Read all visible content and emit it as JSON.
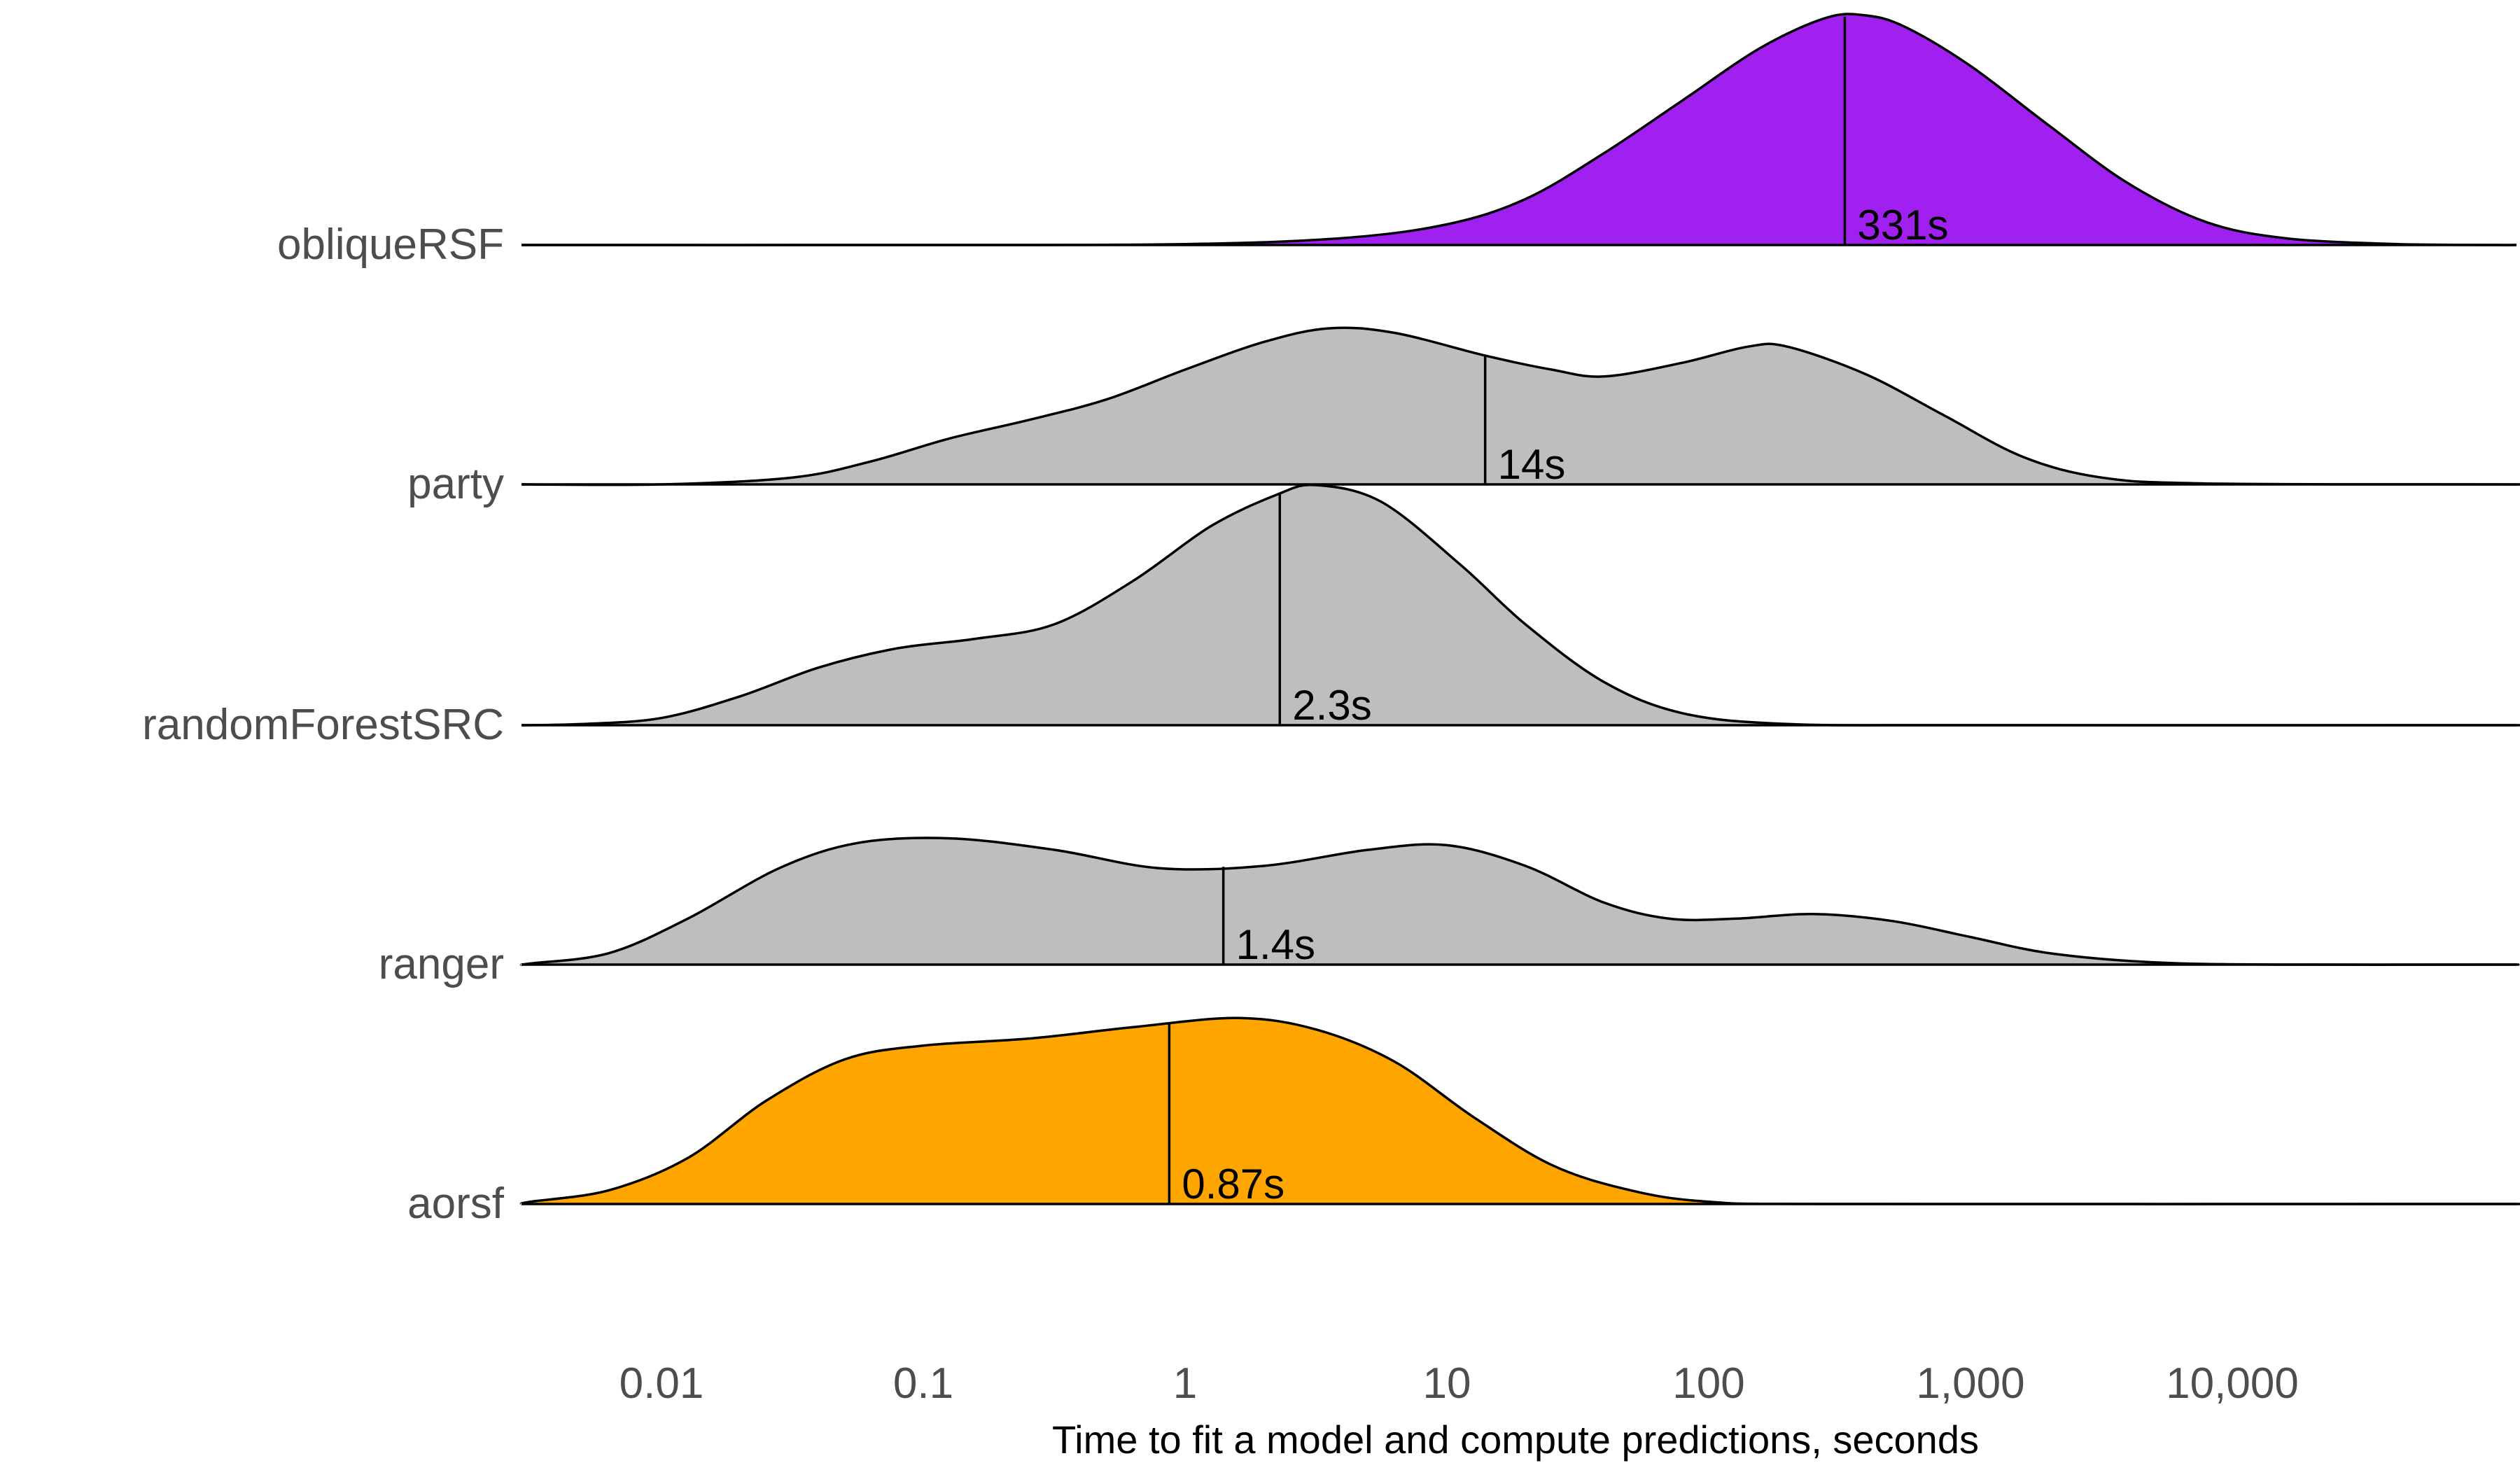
{
  "chart_data": {
    "type": "ridgeline",
    "title": "",
    "xlabel": "Time to fit a model and compute predictions, seconds",
    "ylabel": "",
    "x_scale": "log10",
    "xlim": [
      0.001,
      100000
    ],
    "x_ticks": [
      {
        "value": 0.01,
        "label": "0.01"
      },
      {
        "value": 0.1,
        "label": "0.1"
      },
      {
        "value": 1,
        "label": "1"
      },
      {
        "value": 10,
        "label": "10"
      },
      {
        "value": 100,
        "label": "100"
      },
      {
        "value": 1000,
        "label": "1,000"
      },
      {
        "value": 10000,
        "label": "10,000"
      }
    ],
    "grid": false,
    "legend": "none",
    "series": [
      {
        "name": "obliqueRSF",
        "color": "#a020f0",
        "median": 331,
        "median_label": "331s",
        "density": [
          {
            "log10x": -3.0,
            "h": 0.0
          },
          {
            "log10x": -1.0,
            "h": 0.0
          },
          {
            "log10x": 0.0,
            "h": 0.004
          },
          {
            "log10x": 0.6,
            "h": 0.03
          },
          {
            "log10x": 1.0,
            "h": 0.09
          },
          {
            "log10x": 1.3,
            "h": 0.2
          },
          {
            "log10x": 1.6,
            "h": 0.4
          },
          {
            "log10x": 1.9,
            "h": 0.63
          },
          {
            "log10x": 2.2,
            "h": 0.86
          },
          {
            "log10x": 2.45,
            "h": 0.99
          },
          {
            "log10x": 2.6,
            "h": 1.0
          },
          {
            "log10x": 2.75,
            "h": 0.95
          },
          {
            "log10x": 3.0,
            "h": 0.78
          },
          {
            "log10x": 3.3,
            "h": 0.52
          },
          {
            "log10x": 3.6,
            "h": 0.27
          },
          {
            "log10x": 3.9,
            "h": 0.1
          },
          {
            "log10x": 4.2,
            "h": 0.03
          },
          {
            "log10x": 4.6,
            "h": 0.005
          },
          {
            "log10x": 5.0,
            "h": 0.0
          }
        ]
      },
      {
        "name": "party",
        "color": "#bebebe",
        "median": 14,
        "median_label": "14s",
        "density": [
          {
            "log10x": -3.0,
            "h": 0.0
          },
          {
            "log10x": -2.0,
            "h": 0.0
          },
          {
            "log10x": -1.5,
            "h": 0.03
          },
          {
            "log10x": -1.2,
            "h": 0.1
          },
          {
            "log10x": -0.9,
            "h": 0.2
          },
          {
            "log10x": -0.6,
            "h": 0.28
          },
          {
            "log10x": -0.3,
            "h": 0.37
          },
          {
            "log10x": 0.0,
            "h": 0.5
          },
          {
            "log10x": 0.3,
            "h": 0.62
          },
          {
            "log10x": 0.55,
            "h": 0.68
          },
          {
            "log10x": 0.8,
            "h": 0.66
          },
          {
            "log10x": 1.15,
            "h": 0.56
          },
          {
            "log10x": 1.4,
            "h": 0.5
          },
          {
            "log10x": 1.6,
            "h": 0.47
          },
          {
            "log10x": 1.9,
            "h": 0.53
          },
          {
            "log10x": 2.15,
            "h": 0.6
          },
          {
            "log10x": 2.3,
            "h": 0.6
          },
          {
            "log10x": 2.6,
            "h": 0.48
          },
          {
            "log10x": 2.9,
            "h": 0.3
          },
          {
            "log10x": 3.2,
            "h": 0.12
          },
          {
            "log10x": 3.5,
            "h": 0.03
          },
          {
            "log10x": 3.9,
            "h": 0.004
          },
          {
            "log10x": 5.0,
            "h": 0.0
          }
        ]
      },
      {
        "name": "randomForestSRC",
        "color": "#bebebe",
        "median": 2.3,
        "median_label": "2.3s",
        "density": [
          {
            "log10x": -3.0,
            "h": 0.0
          },
          {
            "log10x": -2.3,
            "h": 0.005
          },
          {
            "log10x": -2.0,
            "h": 0.03
          },
          {
            "log10x": -1.7,
            "h": 0.12
          },
          {
            "log10x": -1.4,
            "h": 0.24
          },
          {
            "log10x": -1.1,
            "h": 0.32
          },
          {
            "log10x": -0.8,
            "h": 0.36
          },
          {
            "log10x": -0.5,
            "h": 0.42
          },
          {
            "log10x": -0.2,
            "h": 0.6
          },
          {
            "log10x": 0.1,
            "h": 0.83
          },
          {
            "log10x": 0.35,
            "h": 0.96
          },
          {
            "log10x": 0.5,
            "h": 1.0
          },
          {
            "log10x": 0.75,
            "h": 0.93
          },
          {
            "log10x": 1.05,
            "h": 0.67
          },
          {
            "log10x": 1.3,
            "h": 0.42
          },
          {
            "log10x": 1.6,
            "h": 0.18
          },
          {
            "log10x": 1.9,
            "h": 0.05
          },
          {
            "log10x": 2.3,
            "h": 0.005
          },
          {
            "log10x": 3.0,
            "h": 0.0
          },
          {
            "log10x": 5.0,
            "h": 0.0
          }
        ]
      },
      {
        "name": "ranger",
        "color": "#bebebe",
        "median": 1.4,
        "median_label": "1.4s",
        "density": [
          {
            "log10x": -3.0,
            "h": 0.0
          },
          {
            "log10x": -2.5,
            "h": 0.005
          },
          {
            "log10x": -2.2,
            "h": 0.05
          },
          {
            "log10x": -1.9,
            "h": 0.2
          },
          {
            "log10x": -1.55,
            "h": 0.42
          },
          {
            "log10x": -1.25,
            "h": 0.53
          },
          {
            "log10x": -0.9,
            "h": 0.55
          },
          {
            "log10x": -0.5,
            "h": 0.5
          },
          {
            "log10x": -0.1,
            "h": 0.42
          },
          {
            "log10x": 0.3,
            "h": 0.43
          },
          {
            "log10x": 0.7,
            "h": 0.5
          },
          {
            "log10x": 1.0,
            "h": 0.52
          },
          {
            "log10x": 1.3,
            "h": 0.43
          },
          {
            "log10x": 1.6,
            "h": 0.27
          },
          {
            "log10x": 1.85,
            "h": 0.2
          },
          {
            "log10x": 2.1,
            "h": 0.2
          },
          {
            "log10x": 2.4,
            "h": 0.22
          },
          {
            "log10x": 2.7,
            "h": 0.19
          },
          {
            "log10x": 3.0,
            "h": 0.12
          },
          {
            "log10x": 3.3,
            "h": 0.05
          },
          {
            "log10x": 3.7,
            "h": 0.01
          },
          {
            "log10x": 4.2,
            "h": 0.0
          },
          {
            "log10x": 5.0,
            "h": 0.0
          }
        ]
      },
      {
        "name": "aorsf",
        "color": "#ffa500",
        "median": 0.87,
        "median_label": "0.87s",
        "density": [
          {
            "log10x": -3.0,
            "h": 0.0
          },
          {
            "log10x": -2.5,
            "h": 0.01
          },
          {
            "log10x": -2.2,
            "h": 0.06
          },
          {
            "log10x": -1.9,
            "h": 0.2
          },
          {
            "log10x": -1.6,
            "h": 0.45
          },
          {
            "log10x": -1.3,
            "h": 0.63
          },
          {
            "log10x": -1.0,
            "h": 0.69
          },
          {
            "log10x": -0.6,
            "h": 0.72
          },
          {
            "log10x": -0.2,
            "h": 0.77
          },
          {
            "log10x": 0.2,
            "h": 0.81
          },
          {
            "log10x": 0.5,
            "h": 0.76
          },
          {
            "log10x": 0.8,
            "h": 0.62
          },
          {
            "log10x": 1.1,
            "h": 0.38
          },
          {
            "log10x": 1.4,
            "h": 0.17
          },
          {
            "log10x": 1.7,
            "h": 0.06
          },
          {
            "log10x": 2.0,
            "h": 0.01
          },
          {
            "log10x": 2.5,
            "h": 0.0
          },
          {
            "log10x": 5.0,
            "h": 0.0
          }
        ]
      }
    ]
  }
}
